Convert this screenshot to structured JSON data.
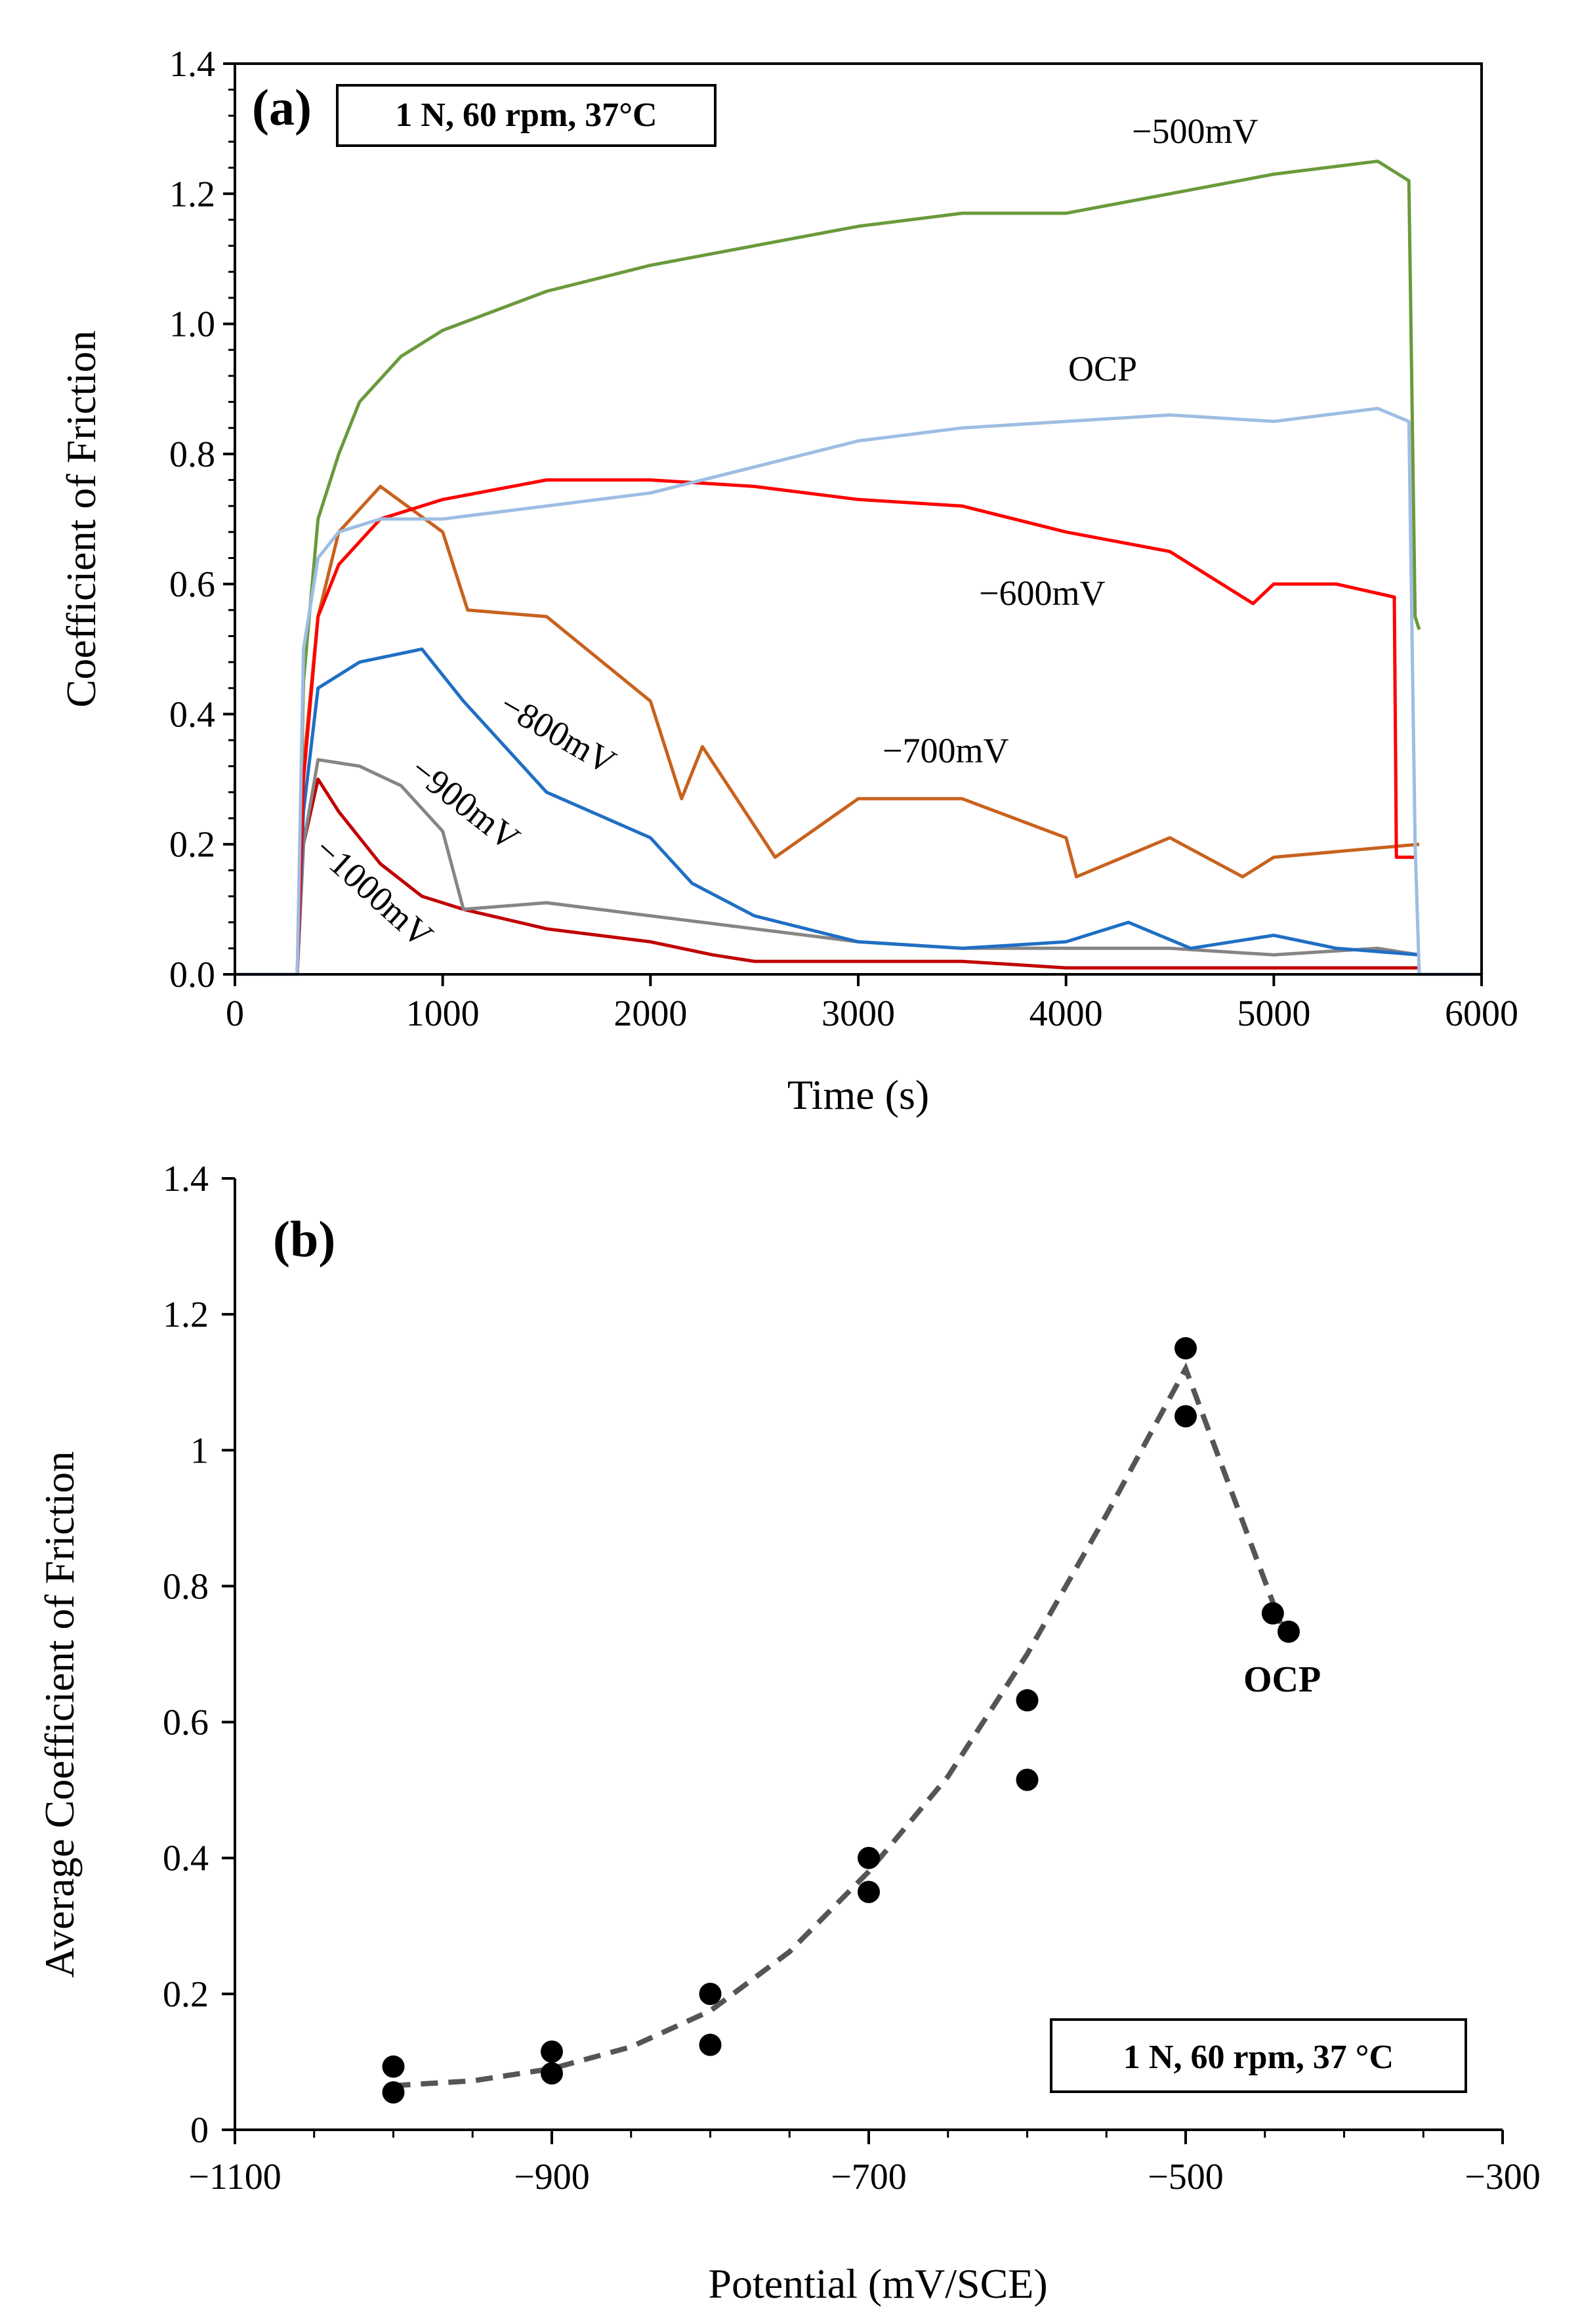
{
  "chart_data": [
    {
      "panel": "(a)",
      "type": "line",
      "annotation": "1 N, 60 rpm, 37°C",
      "xlabel": "Time (s)",
      "ylabel": "Coefficient of Friction",
      "xlim": [
        0,
        6000
      ],
      "ylim": [
        0,
        1.4
      ],
      "xticks": [
        "0",
        "1000",
        "2000",
        "3000",
        "4000",
        "5000",
        "6000"
      ],
      "yticks": [
        "0.0",
        "0.2",
        "0.4",
        "0.6",
        "0.8",
        "1.0",
        "1.2",
        "1.4"
      ],
      "grid": false,
      "series": [
        {
          "name": "−500mV",
          "color": "#6a9a3c",
          "x": [
            0,
            300,
            330,
            400,
            500,
            600,
            800,
            1000,
            1500,
            2000,
            2500,
            3000,
            3500,
            4000,
            4500,
            5000,
            5500,
            5650,
            5680,
            5700
          ],
          "y": [
            0.0,
            0.0,
            0.45,
            0.7,
            0.8,
            0.88,
            0.95,
            0.99,
            1.05,
            1.09,
            1.12,
            1.15,
            1.17,
            1.17,
            1.2,
            1.23,
            1.25,
            1.22,
            0.55,
            0.53
          ]
        },
        {
          "name": "OCP",
          "color": "#9dbde3",
          "x": [
            0,
            300,
            330,
            400,
            500,
            700,
            1000,
            1500,
            2000,
            2500,
            3000,
            3500,
            4000,
            4500,
            5000,
            5500,
            5650,
            5680,
            5700,
            6000
          ],
          "y": [
            0.0,
            0.0,
            0.5,
            0.64,
            0.68,
            0.7,
            0.7,
            0.72,
            0.74,
            0.78,
            0.82,
            0.84,
            0.85,
            0.86,
            0.85,
            0.87,
            0.85,
            0.2,
            0.0,
            0.0
          ]
        },
        {
          "name": "−600mV",
          "color": "#ff0000",
          "x": [
            300,
            330,
            400,
            500,
            700,
            1000,
            1500,
            2000,
            2500,
            3000,
            3500,
            4000,
            4500,
            4900,
            5000,
            5300,
            5580,
            5590,
            5680
          ],
          "y": [
            0.0,
            0.3,
            0.55,
            0.63,
            0.7,
            0.73,
            0.76,
            0.76,
            0.75,
            0.73,
            0.72,
            0.68,
            0.65,
            0.57,
            0.6,
            0.6,
            0.58,
            0.18,
            0.18
          ]
        },
        {
          "name": "−700mV",
          "color": "#c8621e",
          "x": [
            300,
            330,
            400,
            500,
            700,
            1000,
            1120,
            1500,
            2000,
            2150,
            2250,
            2600,
            3000,
            3500,
            4000,
            4050,
            4500,
            4850,
            5000,
            5700
          ],
          "y": [
            0.0,
            0.32,
            0.55,
            0.68,
            0.75,
            0.68,
            0.56,
            0.55,
            0.42,
            0.27,
            0.35,
            0.18,
            0.27,
            0.27,
            0.21,
            0.15,
            0.21,
            0.15,
            0.18,
            0.2
          ]
        },
        {
          "name": "−800mV",
          "color": "#1f6fc4",
          "x": [
            300,
            330,
            400,
            600,
            900,
            1100,
            1500,
            2000,
            2200,
            2500,
            3000,
            3500,
            4000,
            4300,
            4600,
            5000,
            5300,
            5700
          ],
          "y": [
            0.0,
            0.25,
            0.44,
            0.48,
            0.5,
            0.42,
            0.28,
            0.21,
            0.14,
            0.09,
            0.05,
            0.04,
            0.05,
            0.08,
            0.04,
            0.06,
            0.04,
            0.03
          ]
        },
        {
          "name": "−900mV",
          "color": "#858585",
          "x": [
            300,
            330,
            400,
            600,
            800,
            1000,
            1100,
            1500,
            2000,
            2500,
            3000,
            3500,
            4000,
            4500,
            5000,
            5500,
            5700
          ],
          "y": [
            0.0,
            0.2,
            0.33,
            0.32,
            0.29,
            0.22,
            0.1,
            0.11,
            0.09,
            0.07,
            0.05,
            0.04,
            0.04,
            0.04,
            0.03,
            0.04,
            0.03
          ]
        },
        {
          "name": "−1000mV",
          "color": "#c00000",
          "x": [
            300,
            330,
            400,
            500,
            700,
            900,
            1100,
            1500,
            2000,
            2300,
            2500,
            3000,
            3500,
            4000,
            5000,
            5700
          ],
          "y": [
            0.0,
            0.2,
            0.3,
            0.25,
            0.17,
            0.12,
            0.1,
            0.07,
            0.05,
            0.03,
            0.02,
            0.02,
            0.02,
            0.01,
            0.01,
            0.01
          ]
        }
      ],
      "series_labels": [
        "−500mV",
        "OCP",
        "−600mV",
        "−700mV",
        "−800mV",
        "−900mV",
        "−1000mV"
      ]
    },
    {
      "panel": "(b)",
      "type": "scatter",
      "annotation": "1 N, 60 rpm, 37 °C",
      "xlabel": "Potential (mV/SCE)",
      "ylabel": "Average Coefficient of Friction",
      "xlim": [
        -1100,
        -300
      ],
      "ylim": [
        0,
        1.4
      ],
      "xticks": [
        "−1100",
        "−900",
        "−700",
        "−500",
        "−300"
      ],
      "yticks": [
        "0",
        "0.2",
        "0.4",
        "0.6",
        "0.8",
        "1",
        "1.2",
        "1.4"
      ],
      "grid": false,
      "points": [
        {
          "x": -1000,
          "y": 0.093
        },
        {
          "x": -1000,
          "y": 0.055
        },
        {
          "x": -900,
          "y": 0.115
        },
        {
          "x": -900,
          "y": 0.083
        },
        {
          "x": -800,
          "y": 0.2
        },
        {
          "x": -800,
          "y": 0.125
        },
        {
          "x": -700,
          "y": 0.4
        },
        {
          "x": -700,
          "y": 0.35
        },
        {
          "x": -600,
          "y": 0.632
        },
        {
          "x": -600,
          "y": 0.515
        },
        {
          "x": -500,
          "y": 1.15
        },
        {
          "x": -500,
          "y": 1.05
        },
        {
          "x": -445,
          "y": 0.76
        },
        {
          "x": -435,
          "y": 0.733
        }
      ],
      "trendline": {
        "style": "dashed",
        "color": "#555555",
        "x": [
          -1000,
          -950,
          -900,
          -850,
          -800,
          -750,
          -700,
          -650,
          -600,
          -550,
          -500,
          -440
        ],
        "y": [
          0.065,
          0.072,
          0.09,
          0.122,
          0.175,
          0.262,
          0.38,
          0.52,
          0.7,
          0.905,
          1.12,
          0.745
        ]
      },
      "point_label": "OCP"
    }
  ]
}
